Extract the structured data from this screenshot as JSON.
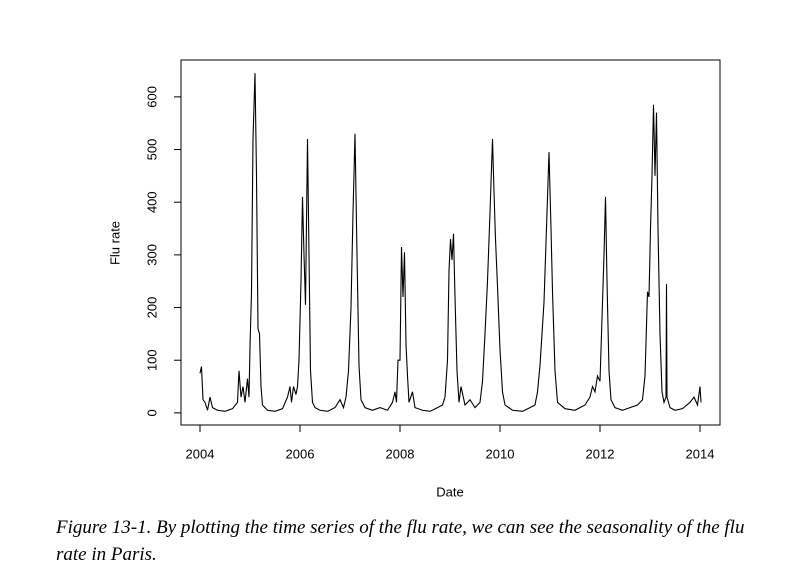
{
  "chart_data": {
    "type": "line",
    "xlabel": "Date",
    "ylabel": "Flu rate",
    "caption": "Figure 13-1. By plotting the time series of the flu rate, we can see the seasonality of the flu rate in Paris.",
    "xlim": [
      2003.62,
      2014.4
    ],
    "ylim": [
      -23,
      670
    ],
    "xticks": [
      2004,
      2006,
      2008,
      2010,
      2012,
      2014
    ],
    "yticks": [
      0,
      100,
      200,
      300,
      400,
      500,
      600
    ],
    "color": "#000000",
    "x": [
      2004.0,
      2004.03,
      2004.06,
      2004.1,
      2004.15,
      2004.2,
      2004.25,
      2004.35,
      2004.5,
      2004.65,
      2004.75,
      2004.78,
      2004.82,
      2004.86,
      2004.9,
      2004.95,
      2004.98,
      2005.0,
      2005.03,
      2005.06,
      2005.1,
      2005.13,
      2005.16,
      2005.19,
      2005.22,
      2005.25,
      2005.35,
      2005.5,
      2005.65,
      2005.75,
      2005.8,
      2005.83,
      2005.87,
      2005.92,
      2005.95,
      2005.98,
      2006.02,
      2006.05,
      2006.08,
      2006.11,
      2006.15,
      2006.18,
      2006.21,
      2006.25,
      2006.3,
      2006.4,
      2006.55,
      2006.7,
      2006.8,
      2006.87,
      2006.92,
      2006.97,
      2007.02,
      2007.06,
      2007.1,
      2007.14,
      2007.18,
      2007.22,
      2007.3,
      2007.45,
      2007.6,
      2007.75,
      2007.85,
      2007.9,
      2007.93,
      2007.96,
      2008.0,
      2008.03,
      2008.06,
      2008.09,
      2008.12,
      2008.15,
      2008.18,
      2008.25,
      2008.3,
      2008.45,
      2008.6,
      2008.75,
      2008.85,
      2008.9,
      2008.95,
      2008.98,
      2009.01,
      2009.04,
      2009.07,
      2009.1,
      2009.14,
      2009.18,
      2009.22,
      2009.3,
      2009.4,
      2009.5,
      2009.6,
      2009.65,
      2009.7,
      2009.75,
      2009.8,
      2009.85,
      2009.88,
      2009.91,
      2009.95,
      2010.0,
      2010.05,
      2010.1,
      2010.25,
      2010.45,
      2010.6,
      2010.7,
      2010.75,
      2010.8,
      2010.88,
      2010.94,
      2010.98,
      2011.02,
      2011.05,
      2011.1,
      2011.15,
      2011.3,
      2011.5,
      2011.7,
      2011.8,
      2011.85,
      2011.9,
      2011.95,
      2012.0,
      2012.04,
      2012.08,
      2012.11,
      2012.14,
      2012.18,
      2012.22,
      2012.3,
      2012.45,
      2012.6,
      2012.75,
      2012.85,
      2012.9,
      2012.95,
      2012.98,
      2013.01,
      2013.04,
      2013.07,
      2013.1,
      2013.13,
      2013.16,
      2013.2,
      2013.24,
      2013.28,
      2013.32,
      2013.33,
      2013.34,
      2013.4,
      2013.5,
      2013.65,
      2013.8,
      2013.88,
      2013.95,
      2014.0,
      2014.02
    ],
    "values": [
      75,
      88,
      25,
      20,
      5,
      30,
      10,
      5,
      3,
      8,
      20,
      80,
      30,
      50,
      20,
      65,
      30,
      125,
      230,
      520,
      645,
      450,
      160,
      150,
      50,
      15,
      5,
      3,
      8,
      30,
      50,
      20,
      50,
      35,
      50,
      100,
      250,
      410,
      300,
      205,
      520,
      300,
      80,
      20,
      10,
      5,
      3,
      10,
      25,
      10,
      30,
      80,
      200,
      380,
      530,
      300,
      90,
      25,
      10,
      5,
      10,
      5,
      20,
      40,
      20,
      100,
      100,
      315,
      220,
      305,
      130,
      70,
      20,
      40,
      10,
      5,
      3,
      10,
      15,
      30,
      100,
      270,
      330,
      290,
      340,
      220,
      80,
      20,
      50,
      15,
      25,
      10,
      20,
      60,
      150,
      250,
      380,
      520,
      420,
      330,
      240,
      120,
      40,
      15,
      5,
      3,
      10,
      15,
      40,
      90,
      210,
      380,
      495,
      350,
      230,
      80,
      20,
      8,
      5,
      15,
      30,
      50,
      40,
      70,
      60,
      180,
      300,
      410,
      250,
      80,
      25,
      10,
      5,
      10,
      15,
      25,
      70,
      230,
      220,
      350,
      450,
      585,
      450,
      570,
      350,
      150,
      40,
      20,
      30,
      245,
      30,
      10,
      5,
      8,
      20,
      30,
      15,
      50,
      20
    ]
  }
}
